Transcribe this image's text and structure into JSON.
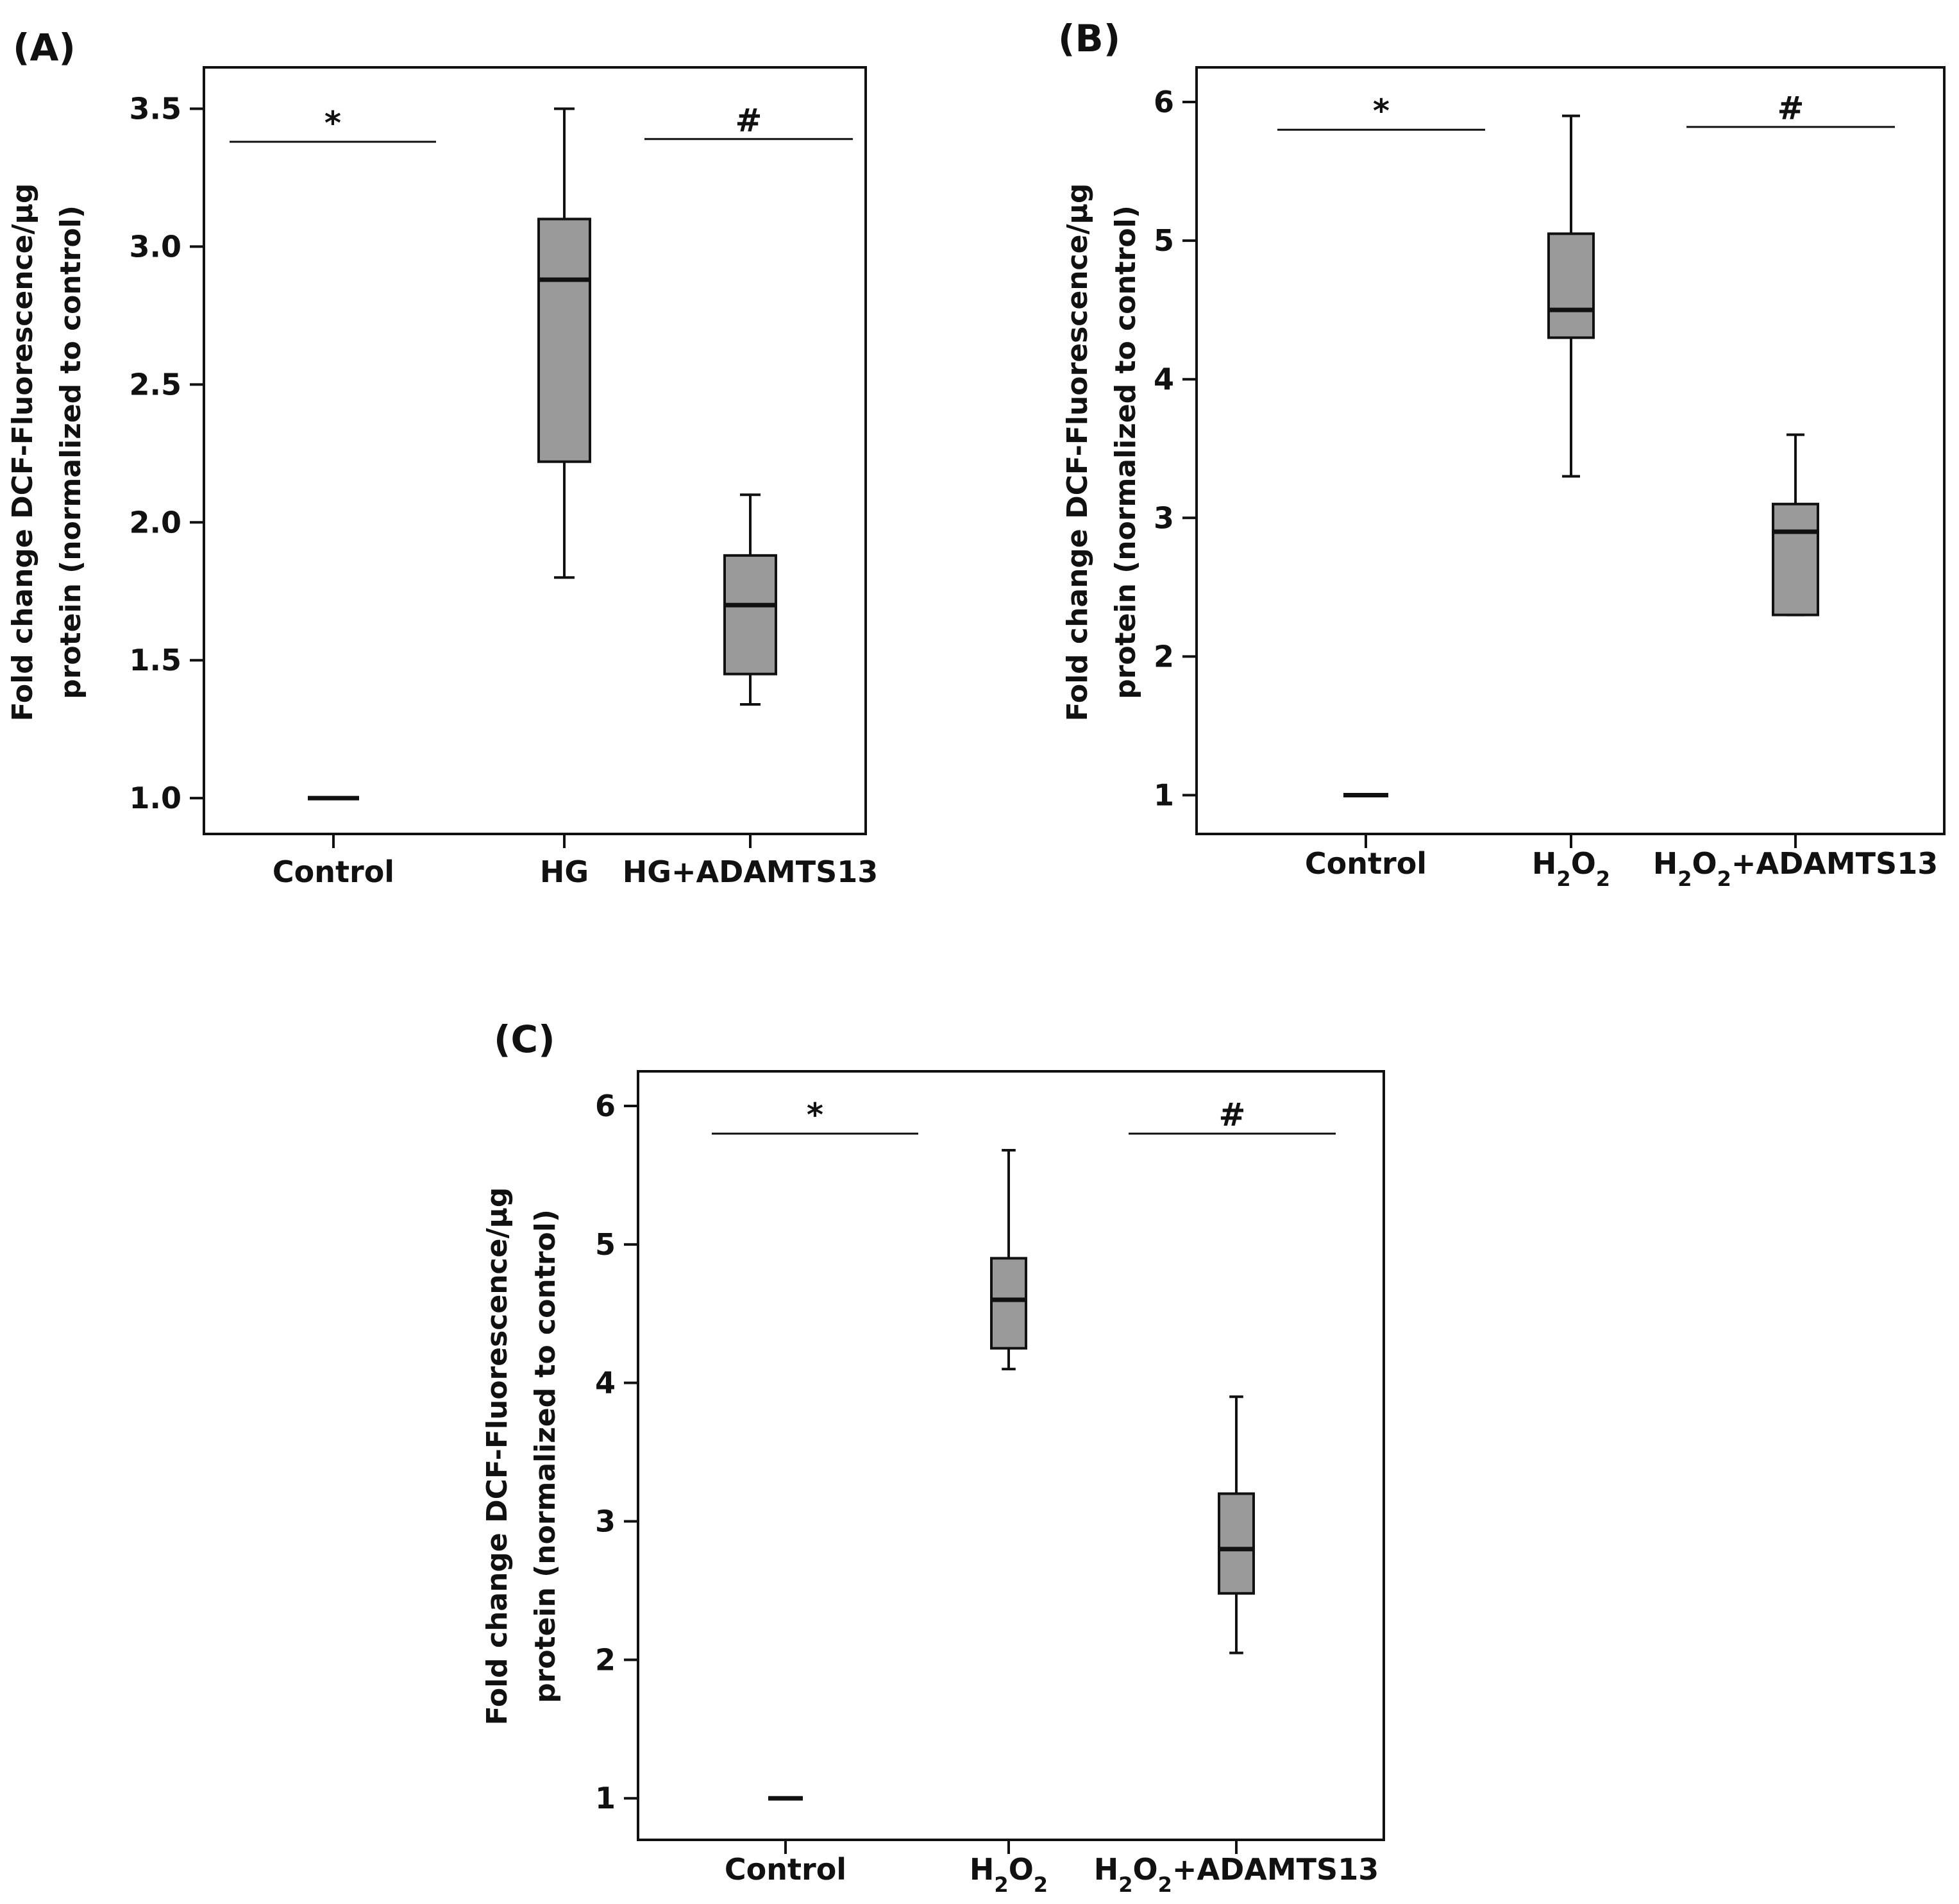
{
  "chart_data": [
    {
      "type": "box",
      "panel_label": "(A)",
      "ylabel_lines": [
        "Fold change DCF-Fluorescence/µg",
        "protein (normalized to control)"
      ],
      "ylim": [
        0.87,
        3.65
      ],
      "yticks": [
        "1.0",
        "1.5",
        "2.0",
        "2.5",
        "3.0",
        "3.5"
      ],
      "categories": [
        {
          "label": "Control",
          "sub": null
        },
        {
          "label": "HG",
          "sub": null
        },
        {
          "label": "HG+ADAMTS13",
          "sub": null
        }
      ],
      "boxes": [
        {
          "min": 1.0,
          "q1": 1.0,
          "median": 1.0,
          "q3": 1.0,
          "max": 1.0
        },
        {
          "min": 1.8,
          "q1": 2.22,
          "median": 2.88,
          "q3": 3.1,
          "max": 3.5
        },
        {
          "min": 1.34,
          "q1": 1.45,
          "median": 1.7,
          "q3": 1.88,
          "max": 2.1
        }
      ],
      "significance": [
        {
          "symbol": "*",
          "from": 0,
          "to": 1,
          "y": 3.38
        },
        {
          "symbol": "#",
          "from": 1,
          "to": 2,
          "y": 3.39
        }
      ]
    },
    {
      "type": "box",
      "panel_label": "(B)",
      "ylabel_lines": [
        "Fold change DCF-Fluorescence/µg",
        "protein (normalized to control)"
      ],
      "ylim": [
        0.72,
        6.25
      ],
      "yticks": [
        "1",
        "2",
        "3",
        "4",
        "5",
        "6"
      ],
      "categories": [
        {
          "label": "Control",
          "sub": null
        },
        {
          "label": "H2O2",
          "sub": "H2O2"
        },
        {
          "label": "H2O2+ADAMTS13",
          "sub": "H2O2+ADAMTS13"
        }
      ],
      "boxes": [
        {
          "min": 1.0,
          "q1": 1.0,
          "median": 1.0,
          "q3": 1.0,
          "max": 1.0
        },
        {
          "min": 3.3,
          "q1": 4.3,
          "median": 4.5,
          "q3": 5.05,
          "max": 5.9
        },
        {
          "min": 2.3,
          "q1": 2.3,
          "median": 2.9,
          "q3": 3.1,
          "max": 3.6
        }
      ],
      "significance": [
        {
          "symbol": "*",
          "from": 0,
          "to": 1,
          "y": 5.8
        },
        {
          "symbol": "#",
          "from": 1,
          "to": 2,
          "y": 5.82
        }
      ]
    },
    {
      "type": "box",
      "panel_label": "(C)",
      "ylabel_lines": [
        "Fold change DCF-Fluorescence/µg",
        "protein (normalized to control)"
      ],
      "ylim": [
        0.7,
        6.25
      ],
      "yticks": [
        "1",
        "2",
        "3",
        "4",
        "5",
        "6"
      ],
      "categories": [
        {
          "label": "Control",
          "sub": null
        },
        {
          "label": "H2O2",
          "sub": "H2O2"
        },
        {
          "label": "H2O2+ADAMTS13",
          "sub": "H2O2+ADAMTS13"
        }
      ],
      "boxes": [
        {
          "min": 1.0,
          "q1": 1.0,
          "median": 1.0,
          "q3": 1.0,
          "max": 1.0
        },
        {
          "min": 4.1,
          "q1": 4.25,
          "median": 4.6,
          "q3": 4.9,
          "max": 5.68
        },
        {
          "min": 2.05,
          "q1": 2.48,
          "median": 2.8,
          "q3": 3.2,
          "max": 3.9
        }
      ],
      "significance": [
        {
          "symbol": "*",
          "from": 0,
          "to": 1,
          "y": 5.8
        },
        {
          "symbol": "#",
          "from": 1,
          "to": 2,
          "y": 5.8
        }
      ]
    }
  ],
  "colors": {
    "box_fill": "#9a9a9a",
    "stroke": "#111111",
    "background": "#ffffff"
  }
}
